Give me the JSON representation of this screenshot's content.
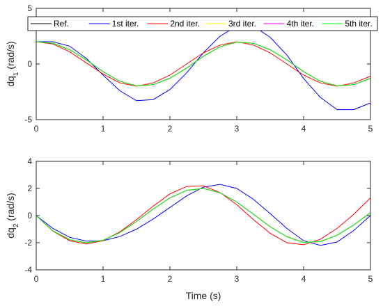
{
  "chart_data": [
    {
      "type": "line",
      "ylabel": "dq",
      "ylabel_sub": "1",
      "ylabel_unit": " (rad/s)",
      "xlabel": "",
      "xlim": [
        0,
        5
      ],
      "ylim": [
        -5,
        5
      ],
      "xticks": [
        0,
        1,
        2,
        3,
        4,
        5
      ],
      "yticks": [
        -5,
        0,
        5
      ],
      "grid": false,
      "legend_position": "top",
      "legend": [
        "Ref.",
        "1st iter.",
        "2nd iter.",
        "3rd iter.",
        "4th iter.",
        "5th iter."
      ],
      "series": [
        {
          "name": "Ref.",
          "color": "#000000",
          "x": [
            0,
            0.25,
            0.5,
            0.75,
            1,
            1.25,
            1.5,
            1.75,
            2,
            2.25,
            2.5,
            2.75,
            3,
            3.25,
            3.5,
            3.75,
            4,
            4.25,
            4.5,
            4.75,
            5
          ],
          "y": [
            2.0,
            1.86,
            1.28,
            0.37,
            -0.68,
            -1.55,
            -1.97,
            -1.86,
            -1.28,
            -0.37,
            0.68,
            1.55,
            1.97,
            1.86,
            1.28,
            0.37,
            -0.68,
            -1.55,
            -1.97,
            -1.86,
            -1.28
          ]
        },
        {
          "name": "1st iter.",
          "color": "#0000FF",
          "x": [
            0,
            0.25,
            0.5,
            0.75,
            1,
            1.25,
            1.5,
            1.75,
            2,
            2.25,
            2.5,
            2.75,
            3,
            3.25,
            3.5,
            3.75,
            4,
            4.25,
            4.5,
            4.75,
            5
          ],
          "y": [
            2.0,
            2.0,
            1.6,
            0.5,
            -1.0,
            -2.4,
            -3.3,
            -3.2,
            -2.3,
            -0.8,
            1.0,
            2.5,
            3.4,
            3.4,
            2.4,
            0.8,
            -1.3,
            -3.0,
            -4.1,
            -4.1,
            -3.5
          ]
        },
        {
          "name": "2nd iter.",
          "color": "#FF0000",
          "x": [
            0,
            0.25,
            0.5,
            0.75,
            1,
            1.25,
            1.5,
            1.75,
            2,
            2.25,
            2.5,
            2.75,
            3,
            3.25,
            3.5,
            3.75,
            4,
            4.25,
            4.5,
            4.75,
            5
          ],
          "y": [
            2.0,
            1.8,
            1.1,
            0.1,
            -0.9,
            -1.7,
            -2.0,
            -1.7,
            -1.0,
            0.0,
            1.0,
            1.7,
            2.0,
            1.7,
            1.0,
            0.0,
            -1.0,
            -1.7,
            -2.0,
            -1.7,
            -1.1
          ]
        },
        {
          "name": "3rd iter.",
          "color": "#FFFF00",
          "x": [
            0,
            0.25,
            0.5,
            0.75,
            1,
            1.25,
            1.5,
            1.75,
            2,
            2.25,
            2.5,
            2.75,
            3,
            3.25,
            3.5,
            3.75,
            4,
            4.25,
            4.5,
            4.75,
            5
          ],
          "y": [
            2.0,
            1.86,
            1.28,
            0.37,
            -0.68,
            -1.55,
            -1.97,
            -1.86,
            -1.28,
            -0.37,
            0.68,
            1.55,
            1.97,
            1.86,
            1.28,
            0.37,
            -0.68,
            -1.55,
            -1.97,
            -1.86,
            -1.28
          ]
        },
        {
          "name": "4th iter.",
          "color": "#FF00FF",
          "x": [
            0,
            0.25,
            0.5,
            0.75,
            1,
            1.25,
            1.5,
            1.75,
            2,
            2.25,
            2.5,
            2.75,
            3,
            3.25,
            3.5,
            3.75,
            4,
            4.25,
            4.5,
            4.75,
            5
          ],
          "y": [
            2.0,
            1.86,
            1.28,
            0.37,
            -0.68,
            -1.55,
            -1.97,
            -1.86,
            -1.28,
            -0.37,
            0.68,
            1.55,
            1.97,
            1.86,
            1.28,
            0.37,
            -0.68,
            -1.55,
            -1.97,
            -1.86,
            -1.28
          ]
        },
        {
          "name": "5th iter.",
          "color": "#00FF00",
          "x": [
            0,
            0.25,
            0.5,
            0.75,
            1,
            1.25,
            1.5,
            1.75,
            2,
            2.25,
            2.5,
            2.75,
            3,
            3.25,
            3.5,
            3.75,
            4,
            4.25,
            4.5,
            4.75,
            5
          ],
          "y": [
            2.0,
            1.86,
            1.28,
            0.37,
            -0.68,
            -1.55,
            -1.97,
            -1.86,
            -1.28,
            -0.37,
            0.68,
            1.55,
            1.97,
            1.86,
            1.28,
            0.37,
            -0.68,
            -1.55,
            -1.97,
            -1.86,
            -1.28
          ]
        }
      ]
    },
    {
      "type": "line",
      "ylabel": "dq",
      "ylabel_sub": "2",
      "ylabel_unit": " (rad/s)",
      "xlabel": "Time (s)",
      "xlim": [
        0,
        5
      ],
      "ylim": [
        -4,
        4
      ],
      "xticks": [
        0,
        1,
        2,
        3,
        4,
        5
      ],
      "yticks": [
        -4,
        -2,
        0,
        2,
        4
      ],
      "grid": false,
      "series": [
        {
          "name": "Ref.",
          "color": "#000000",
          "x": [
            0,
            0.25,
            0.5,
            0.75,
            1,
            1.25,
            1.5,
            1.75,
            2,
            2.25,
            2.5,
            2.75,
            3,
            3.25,
            3.5,
            3.75,
            4,
            4.25,
            4.5,
            4.75,
            5
          ],
          "y": [
            0.0,
            -1.13,
            -1.78,
            -2.0,
            -1.82,
            -1.26,
            -0.43,
            0.48,
            1.3,
            1.86,
            2.0,
            1.68,
            1.0,
            0.1,
            -0.82,
            -1.56,
            -1.98,
            -1.92,
            -1.45,
            -0.7,
            0.22
          ]
        },
        {
          "name": "1st iter.",
          "color": "#0000FF",
          "x": [
            0,
            0.25,
            0.5,
            0.75,
            1,
            1.25,
            1.5,
            1.75,
            2,
            2.25,
            2.5,
            2.75,
            3,
            3.25,
            3.5,
            3.75,
            4,
            4.25,
            4.5,
            4.75,
            5
          ],
          "y": [
            0.0,
            -0.95,
            -1.6,
            -1.88,
            -1.85,
            -1.55,
            -1.0,
            -0.25,
            0.6,
            1.45,
            2.1,
            2.3,
            2.0,
            1.2,
            0.15,
            -0.95,
            -1.85,
            -2.2,
            -1.95,
            -1.1,
            0.0
          ]
        },
        {
          "name": "2nd iter.",
          "color": "#FF0000",
          "x": [
            0,
            0.25,
            0.5,
            0.75,
            1,
            1.25,
            1.5,
            1.75,
            2,
            2.25,
            2.5,
            2.75,
            3,
            3.25,
            3.5,
            3.75,
            4,
            4.25,
            4.5,
            4.75,
            5
          ],
          "y": [
            0.0,
            -1.15,
            -1.85,
            -2.1,
            -1.85,
            -1.2,
            -0.3,
            0.7,
            1.6,
            2.15,
            2.2,
            1.7,
            0.8,
            -0.3,
            -1.3,
            -2.0,
            -2.15,
            -1.75,
            -0.95,
            0.1,
            1.3
          ]
        },
        {
          "name": "3rd iter.",
          "color": "#FFFF00",
          "x": [
            0,
            0.25,
            0.5,
            0.75,
            1,
            1.25,
            1.5,
            1.75,
            2,
            2.25,
            2.5,
            2.75,
            3,
            3.25,
            3.5,
            3.75,
            4,
            4.25,
            4.5,
            4.75,
            5
          ],
          "y": [
            0.0,
            -1.13,
            -1.78,
            -2.0,
            -1.82,
            -1.26,
            -0.43,
            0.48,
            1.3,
            1.86,
            2.0,
            1.68,
            1.0,
            0.1,
            -0.82,
            -1.56,
            -1.98,
            -1.92,
            -1.45,
            -0.7,
            0.22
          ]
        },
        {
          "name": "4th iter.",
          "color": "#FF00FF",
          "x": [
            0,
            0.25,
            0.5,
            0.75,
            1,
            1.25,
            1.5,
            1.75,
            2,
            2.25,
            2.5,
            2.75,
            3,
            3.25,
            3.5,
            3.75,
            4,
            4.25,
            4.5,
            4.75,
            5
          ],
          "y": [
            0.0,
            -1.13,
            -1.78,
            -2.0,
            -1.82,
            -1.26,
            -0.43,
            0.48,
            1.3,
            1.86,
            2.0,
            1.68,
            1.0,
            0.1,
            -0.82,
            -1.56,
            -1.98,
            -1.92,
            -1.45,
            -0.7,
            0.22
          ]
        },
        {
          "name": "5th iter.",
          "color": "#00FF00",
          "x": [
            0,
            0.25,
            0.5,
            0.75,
            1,
            1.25,
            1.5,
            1.75,
            2,
            2.25,
            2.5,
            2.75,
            3,
            3.25,
            3.5,
            3.75,
            4,
            4.25,
            4.5,
            4.75,
            5
          ],
          "y": [
            0.0,
            -1.13,
            -1.78,
            -2.0,
            -1.82,
            -1.26,
            -0.43,
            0.48,
            1.3,
            1.86,
            2.0,
            1.68,
            1.0,
            0.1,
            -0.82,
            -1.56,
            -1.98,
            -1.92,
            -1.45,
            -0.7,
            0.22
          ]
        }
      ]
    }
  ]
}
